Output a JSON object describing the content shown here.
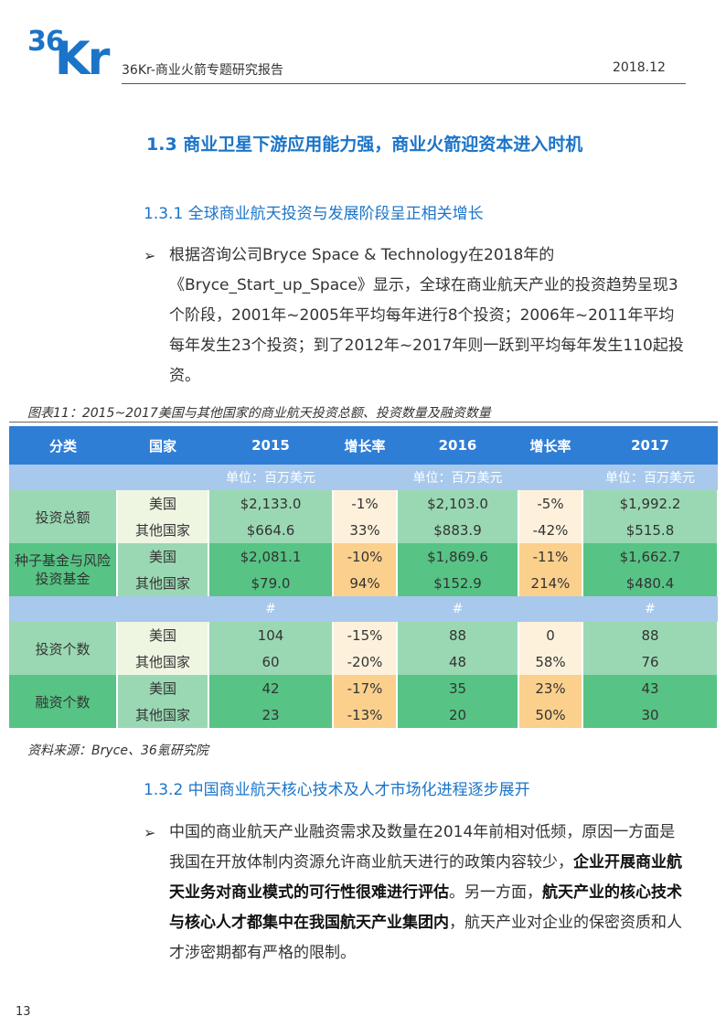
{
  "header": {
    "logo_num": "36",
    "logo_kr": "Kr",
    "title": "36Kr-商业火箭专题研究报告",
    "date": "2018.12"
  },
  "section": {
    "title": "1.3  商业卫星下游应用能力强，商业火箭迎资本进入时机",
    "sub1": "1.3.1  全球商业航天投资与发展阶段呈正相关增长",
    "sub2": "1.3.2  中国商业航天核心技术及人才市场化进程逐步展开"
  },
  "bullet_glyph": "➢",
  "para1": "根据咨询公司Bryce Space & Technology在2018年的《Bryce_Start_up_Space》显示，全球在商业航天产业的投资趋势呈现3个阶段，2001年~2005年平均每年进行8个投资；2006年~2011年平均每年发生23个投资；到了2012年~2017年则一跃到平均每年发生110起投资。",
  "para2": {
    "p1": "中国的商业航天产业融资需求及数量在2014年前相对低频，原因一方面是我国在开放体制内资源允许商业航天进行的政策内容较少，",
    "b1": "企业开展商业航天业务对商业模式的可行性很难进行评估",
    "p2": "。另一方面，",
    "b2": "航天产业的核心技术与核心人才都集中在我国航天产业集团内",
    "p3": "，航天产业对企业的保密资质和人才涉密期都有严格的限制。"
  },
  "figure": {
    "caption": "图表11：2015~2017美国与其他国家的商业航天投资总额、投资数量及融资数量",
    "source": "资料来源：Bryce、36氪研究院"
  },
  "table": {
    "headers": [
      "分类",
      "国家",
      "2015",
      "增长率",
      "2016",
      "增长率",
      "2017"
    ],
    "unit": "单位：百万美元",
    "hash": "#",
    "groups": [
      {
        "category": "投资总额",
        "rows": [
          {
            "country": "美国",
            "v2015": "$2,133.0",
            "r1": "-1%",
            "v2016": "$2,103.0",
            "r2": "-5%",
            "v2017": "$1,992.2"
          },
          {
            "country": "其他国家",
            "v2015": "$664.6",
            "r1": "33%",
            "v2016": "$883.9",
            "r2": "-42%",
            "v2017": "$515.8"
          }
        ]
      },
      {
        "category": "种子基金与风险投资基金",
        "rows": [
          {
            "country": "美国",
            "v2015": "$2,081.1",
            "r1": "-10%",
            "v2016": "$1,869.6",
            "r2": "-11%",
            "v2017": "$1,662.7"
          },
          {
            "country": "其他国家",
            "v2015": "$79.0",
            "r1": "94%",
            "v2016": "$152.9",
            "r2": "214%",
            "v2017": "$480.4"
          }
        ]
      },
      {
        "category": "投资个数",
        "rows": [
          {
            "country": "美国",
            "v2015": "104",
            "r1": "-15%",
            "v2016": "88",
            "r2": "0",
            "v2017": "88"
          },
          {
            "country": "其他国家",
            "v2015": "60",
            "r1": "-20%",
            "v2016": "48",
            "r2": "58%",
            "v2017": "76"
          }
        ]
      },
      {
        "category": "融资个数",
        "rows": [
          {
            "country": "美国",
            "v2015": "42",
            "r1": "-17%",
            "v2016": "35",
            "r2": "23%",
            "v2017": "43"
          },
          {
            "country": "其他国家",
            "v2015": "23",
            "r1": "-13%",
            "v2016": "20",
            "r2": "50%",
            "v2017": "30"
          }
        ]
      }
    ]
  },
  "page_number": "13"
}
